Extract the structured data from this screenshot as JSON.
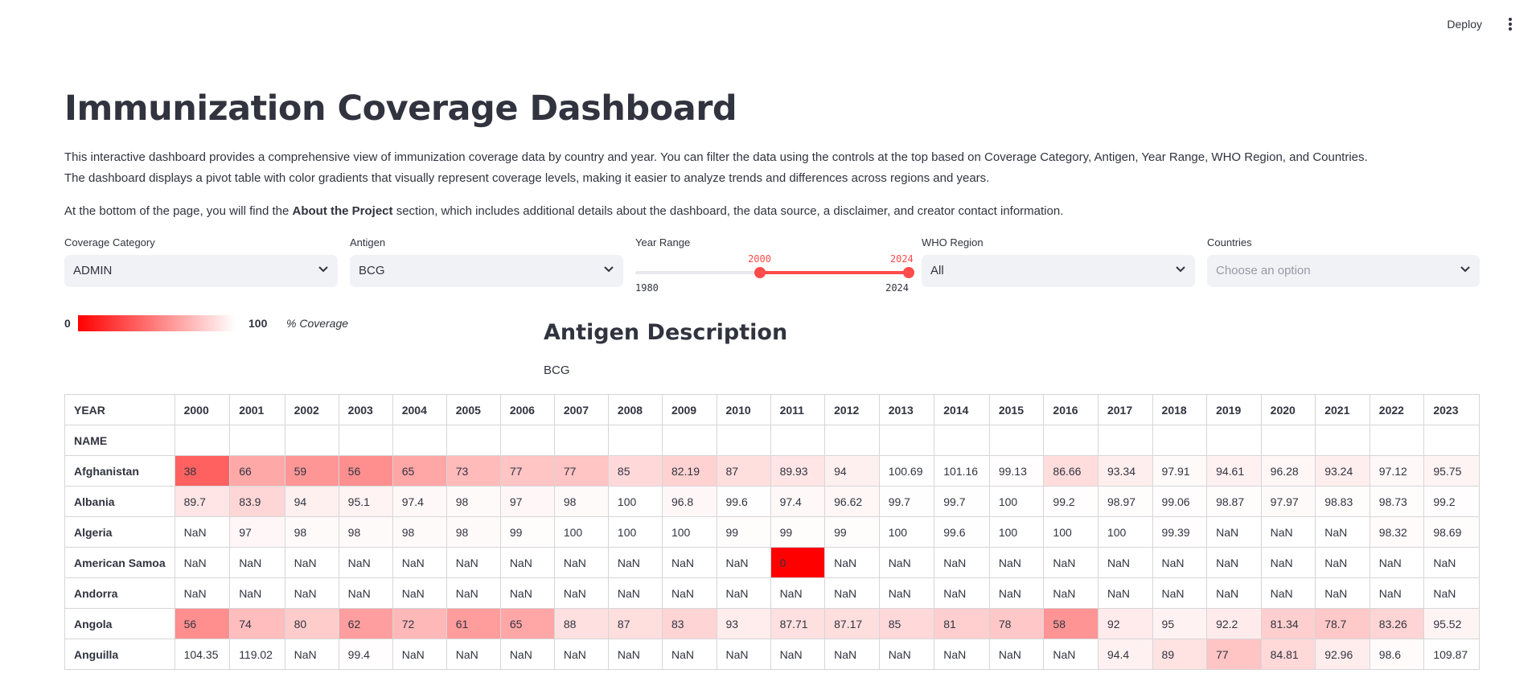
{
  "header": {
    "deploy_label": "Deploy",
    "menu_icon": "vertical-dots-icon"
  },
  "page": {
    "title": "Immunization Coverage Dashboard",
    "intro_line1": "This interactive dashboard provides a comprehensive view of immunization coverage data by country and year. You can filter the data using the controls at the top based on Coverage Category, Antigen, Year Range, WHO Region, and Countries.",
    "intro_line2": "The dashboard displays a pivot table with color gradients that visually represent coverage levels, making it easier to analyze trends and differences across regions and years.",
    "para2_before": "At the bottom of the page, you will find the ",
    "para2_bold": "About the Project",
    "para2_after": " section, which includes additional details about the dashboard, the data source, a disclaimer, and creator contact information."
  },
  "filters": {
    "coverage_category": {
      "label": "Coverage Category",
      "value": "ADMIN"
    },
    "antigen": {
      "label": "Antigen",
      "value": "BCG"
    },
    "year_range": {
      "label": "Year Range",
      "min": 1980,
      "max": 2024,
      "low": 2000,
      "high": 2024,
      "min_label": "1980",
      "max_label": "2024",
      "low_label": "2000",
      "high_label": "2024"
    },
    "who_region": {
      "label": "WHO Region",
      "value": "All"
    },
    "countries": {
      "label": "Countries",
      "placeholder": "Choose an option"
    }
  },
  "legend": {
    "min": "0",
    "max": "100",
    "unit": "% Coverage",
    "color": "#ff0000"
  },
  "antigen_description": {
    "title": "Antigen Description",
    "text": "BCG"
  },
  "table": {
    "corner_label": "YEAR",
    "index_label": "NAME",
    "years": [
      "2000",
      "2001",
      "2002",
      "2003",
      "2004",
      "2005",
      "2006",
      "2007",
      "2008",
      "2009",
      "2010",
      "2011",
      "2012",
      "2013",
      "2014",
      "2015",
      "2016",
      "2017",
      "2018",
      "2019",
      "2020",
      "2021",
      "2022",
      "2023"
    ],
    "rows": [
      {
        "name": "Afghanistan",
        "values": [
          "38",
          "66",
          "59",
          "56",
          "65",
          "73",
          "77",
          "77",
          "85",
          "82.19",
          "87",
          "89.93",
          "94",
          "100.69",
          "101.16",
          "99.13",
          "86.66",
          "93.34",
          "97.91",
          "94.61",
          "96.28",
          "93.24",
          "97.12",
          "95.75"
        ]
      },
      {
        "name": "Albania",
        "values": [
          "89.7",
          "83.9",
          "94",
          "95.1",
          "97.4",
          "98",
          "97",
          "98",
          "100",
          "96.8",
          "99.6",
          "97.4",
          "96.62",
          "99.7",
          "99.7",
          "100",
          "99.2",
          "98.97",
          "99.06",
          "98.87",
          "97.97",
          "98.83",
          "98.73",
          "99.2"
        ]
      },
      {
        "name": "Algeria",
        "values": [
          "NaN",
          "97",
          "98",
          "98",
          "98",
          "98",
          "99",
          "100",
          "100",
          "100",
          "99",
          "99",
          "99",
          "100",
          "99.6",
          "100",
          "100",
          "100",
          "99.39",
          "NaN",
          "NaN",
          "NaN",
          "98.32",
          "98.69"
        ]
      },
      {
        "name": "American Samoa",
        "values": [
          "NaN",
          "NaN",
          "NaN",
          "NaN",
          "NaN",
          "NaN",
          "NaN",
          "NaN",
          "NaN",
          "NaN",
          "NaN",
          "0",
          "NaN",
          "NaN",
          "NaN",
          "NaN",
          "NaN",
          "NaN",
          "NaN",
          "NaN",
          "NaN",
          "NaN",
          "NaN",
          "NaN"
        ]
      },
      {
        "name": "Andorra",
        "values": [
          "NaN",
          "NaN",
          "NaN",
          "NaN",
          "NaN",
          "NaN",
          "NaN",
          "NaN",
          "NaN",
          "NaN",
          "NaN",
          "NaN",
          "NaN",
          "NaN",
          "NaN",
          "NaN",
          "NaN",
          "NaN",
          "NaN",
          "NaN",
          "NaN",
          "NaN",
          "NaN",
          "NaN"
        ]
      },
      {
        "name": "Angola",
        "values": [
          "56",
          "74",
          "80",
          "62",
          "72",
          "61",
          "65",
          "88",
          "87",
          "83",
          "93",
          "87.71",
          "87.17",
          "85",
          "81",
          "78",
          "58",
          "92",
          "95",
          "92.2",
          "81.34",
          "78.7",
          "83.26",
          "95.52"
        ]
      },
      {
        "name": "Anguilla",
        "values": [
          "104.35",
          "119.02",
          "NaN",
          "99.4",
          "NaN",
          "NaN",
          "NaN",
          "NaN",
          "NaN",
          "NaN",
          "NaN",
          "NaN",
          "NaN",
          "NaN",
          "NaN",
          "NaN",
          "NaN",
          "94.4",
          "89",
          "77",
          "84.81",
          "92.96",
          "98.6",
          "109.87"
        ]
      }
    ]
  }
}
